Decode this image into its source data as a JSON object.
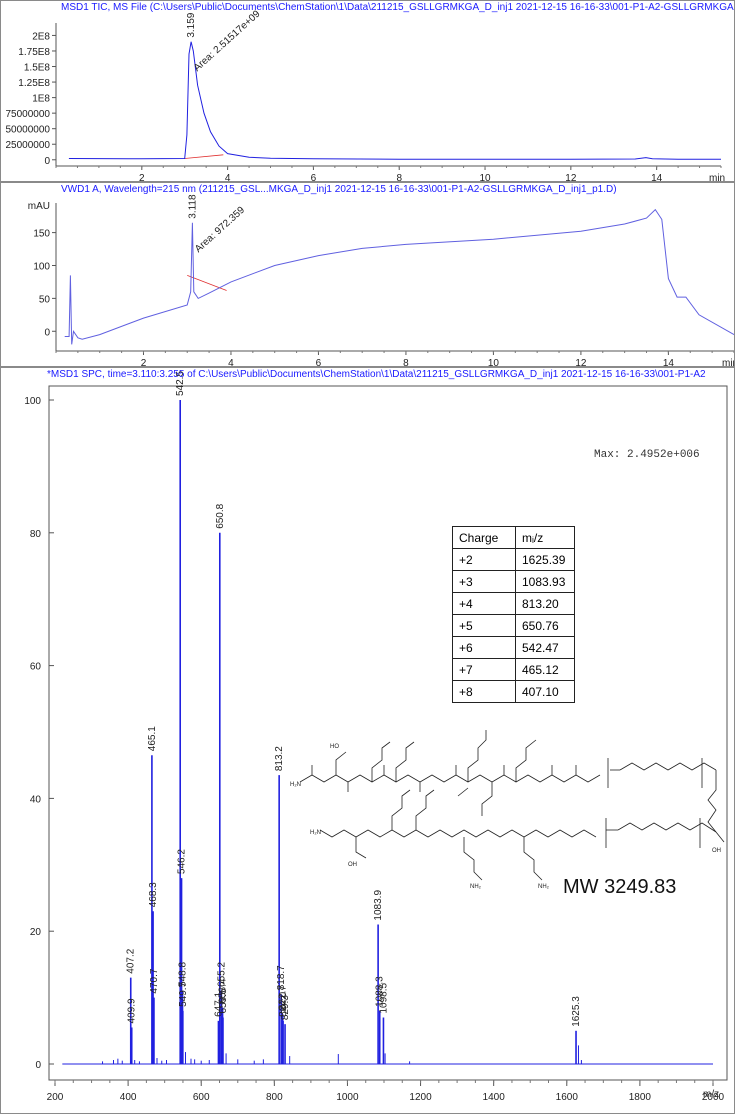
{
  "panels": {
    "tic_title": "MSD1 TIC, MS File (C:\\Users\\Public\\Documents\\ChemStation\\1\\Data\\211215_GSLLGRMKGA_D_inj1 2021-12-15 16-16-33\\001-P1-A2-GSLLGRMKGA",
    "uv_title": "VWD1 A, Wavelength=215 nm (211215_GSL...MKGA_D_inj1 2021-12-15 16-16-33\\001-P1-A2-GSLLGRMKGA_D_inj1_p1.D)",
    "ms_title": "*MSD1 SPC, time=3.110:3.255 of C:\\Users\\Public\\Documents\\ChemStation\\1\\Data\\211215_GSLLGRMKGA_D_inj1 2021-12-15 16-16-33\\001-P1-A2"
  },
  "max_label": "Max: 2.4952e+006",
  "mw_label": "MW 3249.83",
  "charge_table": {
    "headers": [
      "Charge",
      "mᵢ/z"
    ],
    "rows": [
      [
        "+2",
        "1625.39"
      ],
      [
        "+3",
        "1083.93"
      ],
      [
        "+4",
        "813.20"
      ],
      [
        "+5",
        "650.76"
      ],
      [
        "+6",
        "542.47"
      ],
      [
        "+7",
        "465.12"
      ],
      [
        "+8",
        "407.10"
      ]
    ]
  },
  "colors": {
    "trace": "#2020e0",
    "title": "#1a1aff",
    "baseline": "#e03030",
    "uv_trace": "#6060e0"
  },
  "chart_data": [
    {
      "type": "line",
      "title": "MSD1 TIC",
      "xlabel": "min",
      "xlim": [
        0,
        15.5
      ],
      "ylim": [
        -10000000,
        220000000
      ],
      "xticks": [
        2,
        4,
        6,
        8,
        10,
        12,
        14
      ],
      "yticks": [
        0,
        25000000,
        50000000,
        75000000,
        100000000,
        125000000,
        150000000,
        175000000,
        200000000
      ],
      "ytick_labels": [
        "0",
        "25000000",
        "50000000",
        "75000000",
        "1E8",
        "1.25E8",
        "1.5E8",
        "1.75E8",
        "2E8"
      ],
      "x": [
        0.3,
        2.0,
        3.0,
        3.05,
        3.1,
        3.15,
        3.2,
        3.3,
        3.45,
        3.6,
        3.8,
        4.0,
        4.5,
        5.0,
        6.0,
        8.0,
        10.0,
        12.0,
        13.5,
        13.75,
        13.9,
        14.5,
        15.5
      ],
      "y": [
        2000000,
        1500000,
        2000000,
        40000000,
        170000000,
        190000000,
        175000000,
        120000000,
        75000000,
        45000000,
        22000000,
        10000000,
        4000000,
        2500000,
        1500000,
        1000000,
        1000000,
        1000000,
        1200000,
        3500000,
        1500000,
        800000,
        800000
      ],
      "peak_label": "3.159",
      "area_label": "Area: 2.51517e+09"
    },
    {
      "type": "line",
      "title": "VWD1 A, Wavelength=215 nm",
      "xlabel": "min",
      "ylabel": "mAU",
      "xlim": [
        0,
        15.5
      ],
      "ylim": [
        -30,
        195
      ],
      "xticks": [
        2,
        4,
        6,
        8,
        10,
        12,
        14
      ],
      "yticks": [
        0,
        50,
        100,
        150
      ],
      "x": [
        0.2,
        0.3,
        0.33,
        0.36,
        0.4,
        0.5,
        0.6,
        1.0,
        2.0,
        3.0,
        3.08,
        3.118,
        3.15,
        3.25,
        3.5,
        4.0,
        5.0,
        6.0,
        7.0,
        8.0,
        10.0,
        12.0,
        13.0,
        13.5,
        13.7,
        13.85,
        14.0,
        14.2,
        14.4,
        14.7,
        15.5
      ],
      "y": [
        -8,
        -8,
        85,
        -20,
        0,
        -10,
        -12,
        -5,
        20,
        40,
        60,
        165,
        60,
        50,
        58,
        75,
        100,
        115,
        126,
        132,
        140,
        152,
        163,
        172,
        185,
        170,
        80,
        52,
        52,
        25,
        -5
      ],
      "peak_label": "3.118",
      "area_label": "Area: 972.359"
    },
    {
      "type": "bar",
      "title": "*MSD1 SPC, time=3.110:3.255",
      "xlabel": "m/z",
      "xlim": [
        200,
        2000
      ],
      "ylim": [
        0,
        100
      ],
      "xticks": [
        200,
        400,
        600,
        800,
        1000,
        1200,
        1400,
        1600,
        1800,
        2000
      ],
      "yticks": [
        0,
        20,
        40,
        60,
        80,
        100
      ],
      "peaks": [
        {
          "mz": 407.2,
          "y": 13.0,
          "label": "407.2"
        },
        {
          "mz": 409.9,
          "y": 5.5,
          "label": "409.9"
        },
        {
          "mz": 465.1,
          "y": 46.5,
          "label": "465.1"
        },
        {
          "mz": 468.3,
          "y": 23.0,
          "label": "468.3"
        },
        {
          "mz": 470.7,
          "y": 10.0,
          "label": "470.7"
        },
        {
          "mz": 542.5,
          "y": 100.0,
          "label": "542.5"
        },
        {
          "mz": 546.2,
          "y": 28.0,
          "label": "546.2"
        },
        {
          "mz": 548.8,
          "y": 11.0,
          "label": "548.8"
        },
        {
          "mz": 549.7,
          "y": 8.0,
          "label": "549.7"
        },
        {
          "mz": 650.8,
          "y": 80.0,
          "label": "650.8"
        },
        {
          "mz": 655.2,
          "y": 11.0,
          "label": "655.2"
        },
        {
          "mz": 658.4,
          "y": 8.5,
          "label": "658.4"
        },
        {
          "mz": 659.5,
          "y": 7.0,
          "label": "659.5"
        },
        {
          "mz": 647.1,
          "y": 6.5,
          "label": "647.1"
        },
        {
          "mz": 813.2,
          "y": 43.5,
          "label": "813.2"
        },
        {
          "mz": 818.7,
          "y": 10.5,
          "label": "818.7"
        },
        {
          "mz": 822.7,
          "y": 7.5,
          "label": "822.7"
        },
        {
          "mz": 824.0,
          "y": 6.5,
          "label": "824.0"
        },
        {
          "mz": 829.3,
          "y": 6.0,
          "label": "829.3"
        },
        {
          "mz": 1083.9,
          "y": 21.0,
          "label": "1083.9"
        },
        {
          "mz": 1088.3,
          "y": 8.0,
          "label": "1088.3"
        },
        {
          "mz": 1098.5,
          "y": 7.0,
          "label": "1098.5"
        },
        {
          "mz": 1625.3,
          "y": 5.0,
          "label": "1625.3"
        }
      ],
      "minor_peaks": [
        {
          "mz": 330,
          "y": 0.4
        },
        {
          "mz": 360,
          "y": 0.6
        },
        {
          "mz": 372,
          "y": 0.8
        },
        {
          "mz": 384,
          "y": 0.5
        },
        {
          "mz": 418,
          "y": 0.6
        },
        {
          "mz": 431,
          "y": 0.4
        },
        {
          "mz": 479,
          "y": 0.9
        },
        {
          "mz": 492,
          "y": 0.5
        },
        {
          "mz": 505,
          "y": 0.6
        },
        {
          "mz": 557,
          "y": 1.8
        },
        {
          "mz": 572,
          "y": 0.8
        },
        {
          "mz": 582,
          "y": 0.7
        },
        {
          "mz": 600,
          "y": 0.5
        },
        {
          "mz": 622,
          "y": 0.6
        },
        {
          "mz": 668,
          "y": 1.6
        },
        {
          "mz": 700,
          "y": 0.7
        },
        {
          "mz": 745,
          "y": 0.5
        },
        {
          "mz": 770,
          "y": 0.7
        },
        {
          "mz": 842,
          "y": 1.2
        },
        {
          "mz": 975,
          "y": 1.5
        },
        {
          "mz": 1103,
          "y": 1.6
        },
        {
          "mz": 1170,
          "y": 0.4
        },
        {
          "mz": 1632,
          "y": 2.8
        },
        {
          "mz": 1640,
          "y": 0.6
        }
      ]
    }
  ]
}
